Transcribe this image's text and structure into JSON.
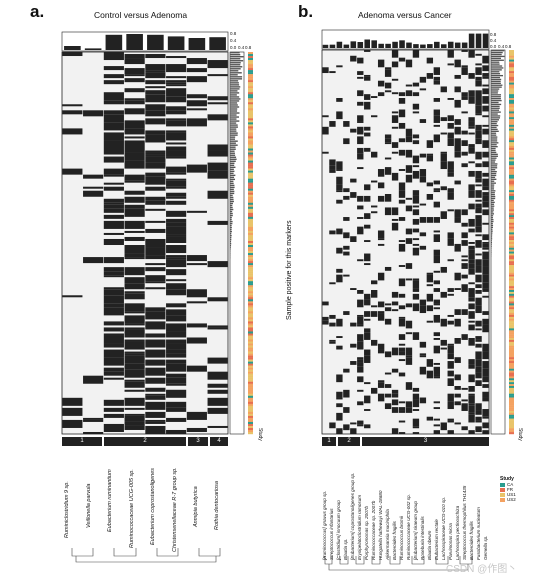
{
  "panel_a": {
    "letter": "a.",
    "title": "Control versus Adenoma",
    "ticks": [
      "0.8",
      "0.4",
      "0.0",
      "0.4",
      "0.8"
    ],
    "clusters": [
      "1",
      "2",
      "3",
      "4"
    ],
    "study_label": "Study",
    "taxa": [
      "Ruminiclostridium 9 sp.",
      "Veillonella parvula",
      "Eubacterium ruminantium",
      "Ruminococcaceae UCG-005 sp.",
      "Eubacterium coprostanoligenes",
      "Christensenellaceae R-7 group sp.",
      "Anmipia butyrica",
      "Rothia dentocariosa"
    ]
  },
  "panel_b": {
    "letter": "b.",
    "title": "Adenoma versus Cancer",
    "ticks": [
      "0.8",
      "0.4",
      "0.0",
      "0.4",
      "0.8"
    ],
    "clusters": [
      "1",
      "2",
      "3"
    ],
    "study_label": "Study",
    "taxa": [
      "[Ruminococcus] gnavus group sp.",
      "Streptococcus infantarius",
      "[Clostridium] innocuum group",
      "Blautia sp.",
      "[Eubacterium] coprostanoligenes group sp.",
      "Erysipelatoclostridium ramosum",
      "Porphyromonas sp. 2007b",
      "Ruminococcaceae sp. 2007b",
      "Hungatella hathewayi WAL-18680",
      "Akkermansia muciniphila",
      "Bacteroides fragilis",
      "Ruminococcus bromii",
      "Ruminococcaceae UCG-002 sp.",
      "[Eubacterium] siraeum group",
      "Roseburia intestinalis",
      "Blautia obeum",
      "Eubacterium rectale",
      "Lachnospiraceae UCG-010 sp.",
      "Parvimonas micra",
      "Lachnospira pectinoschiza",
      "Streptococcus thermophilus TH1435",
      "Bacteroides fragilis",
      "Fusobacterium nucleatum",
      "Gemella sp."
    ]
  },
  "y_axis_label": "Sample positive for this markers",
  "legend": {
    "title": "Study",
    "items": [
      {
        "label": "CA",
        "color": "#2a9d8f"
      },
      {
        "label": "FR",
        "color": "#e76f51"
      },
      {
        "label": "US1",
        "color": "#e9c46a"
      },
      {
        "label": "US2",
        "color": "#f4a261"
      }
    ]
  },
  "watermark": "CSDN @作图丶"
}
